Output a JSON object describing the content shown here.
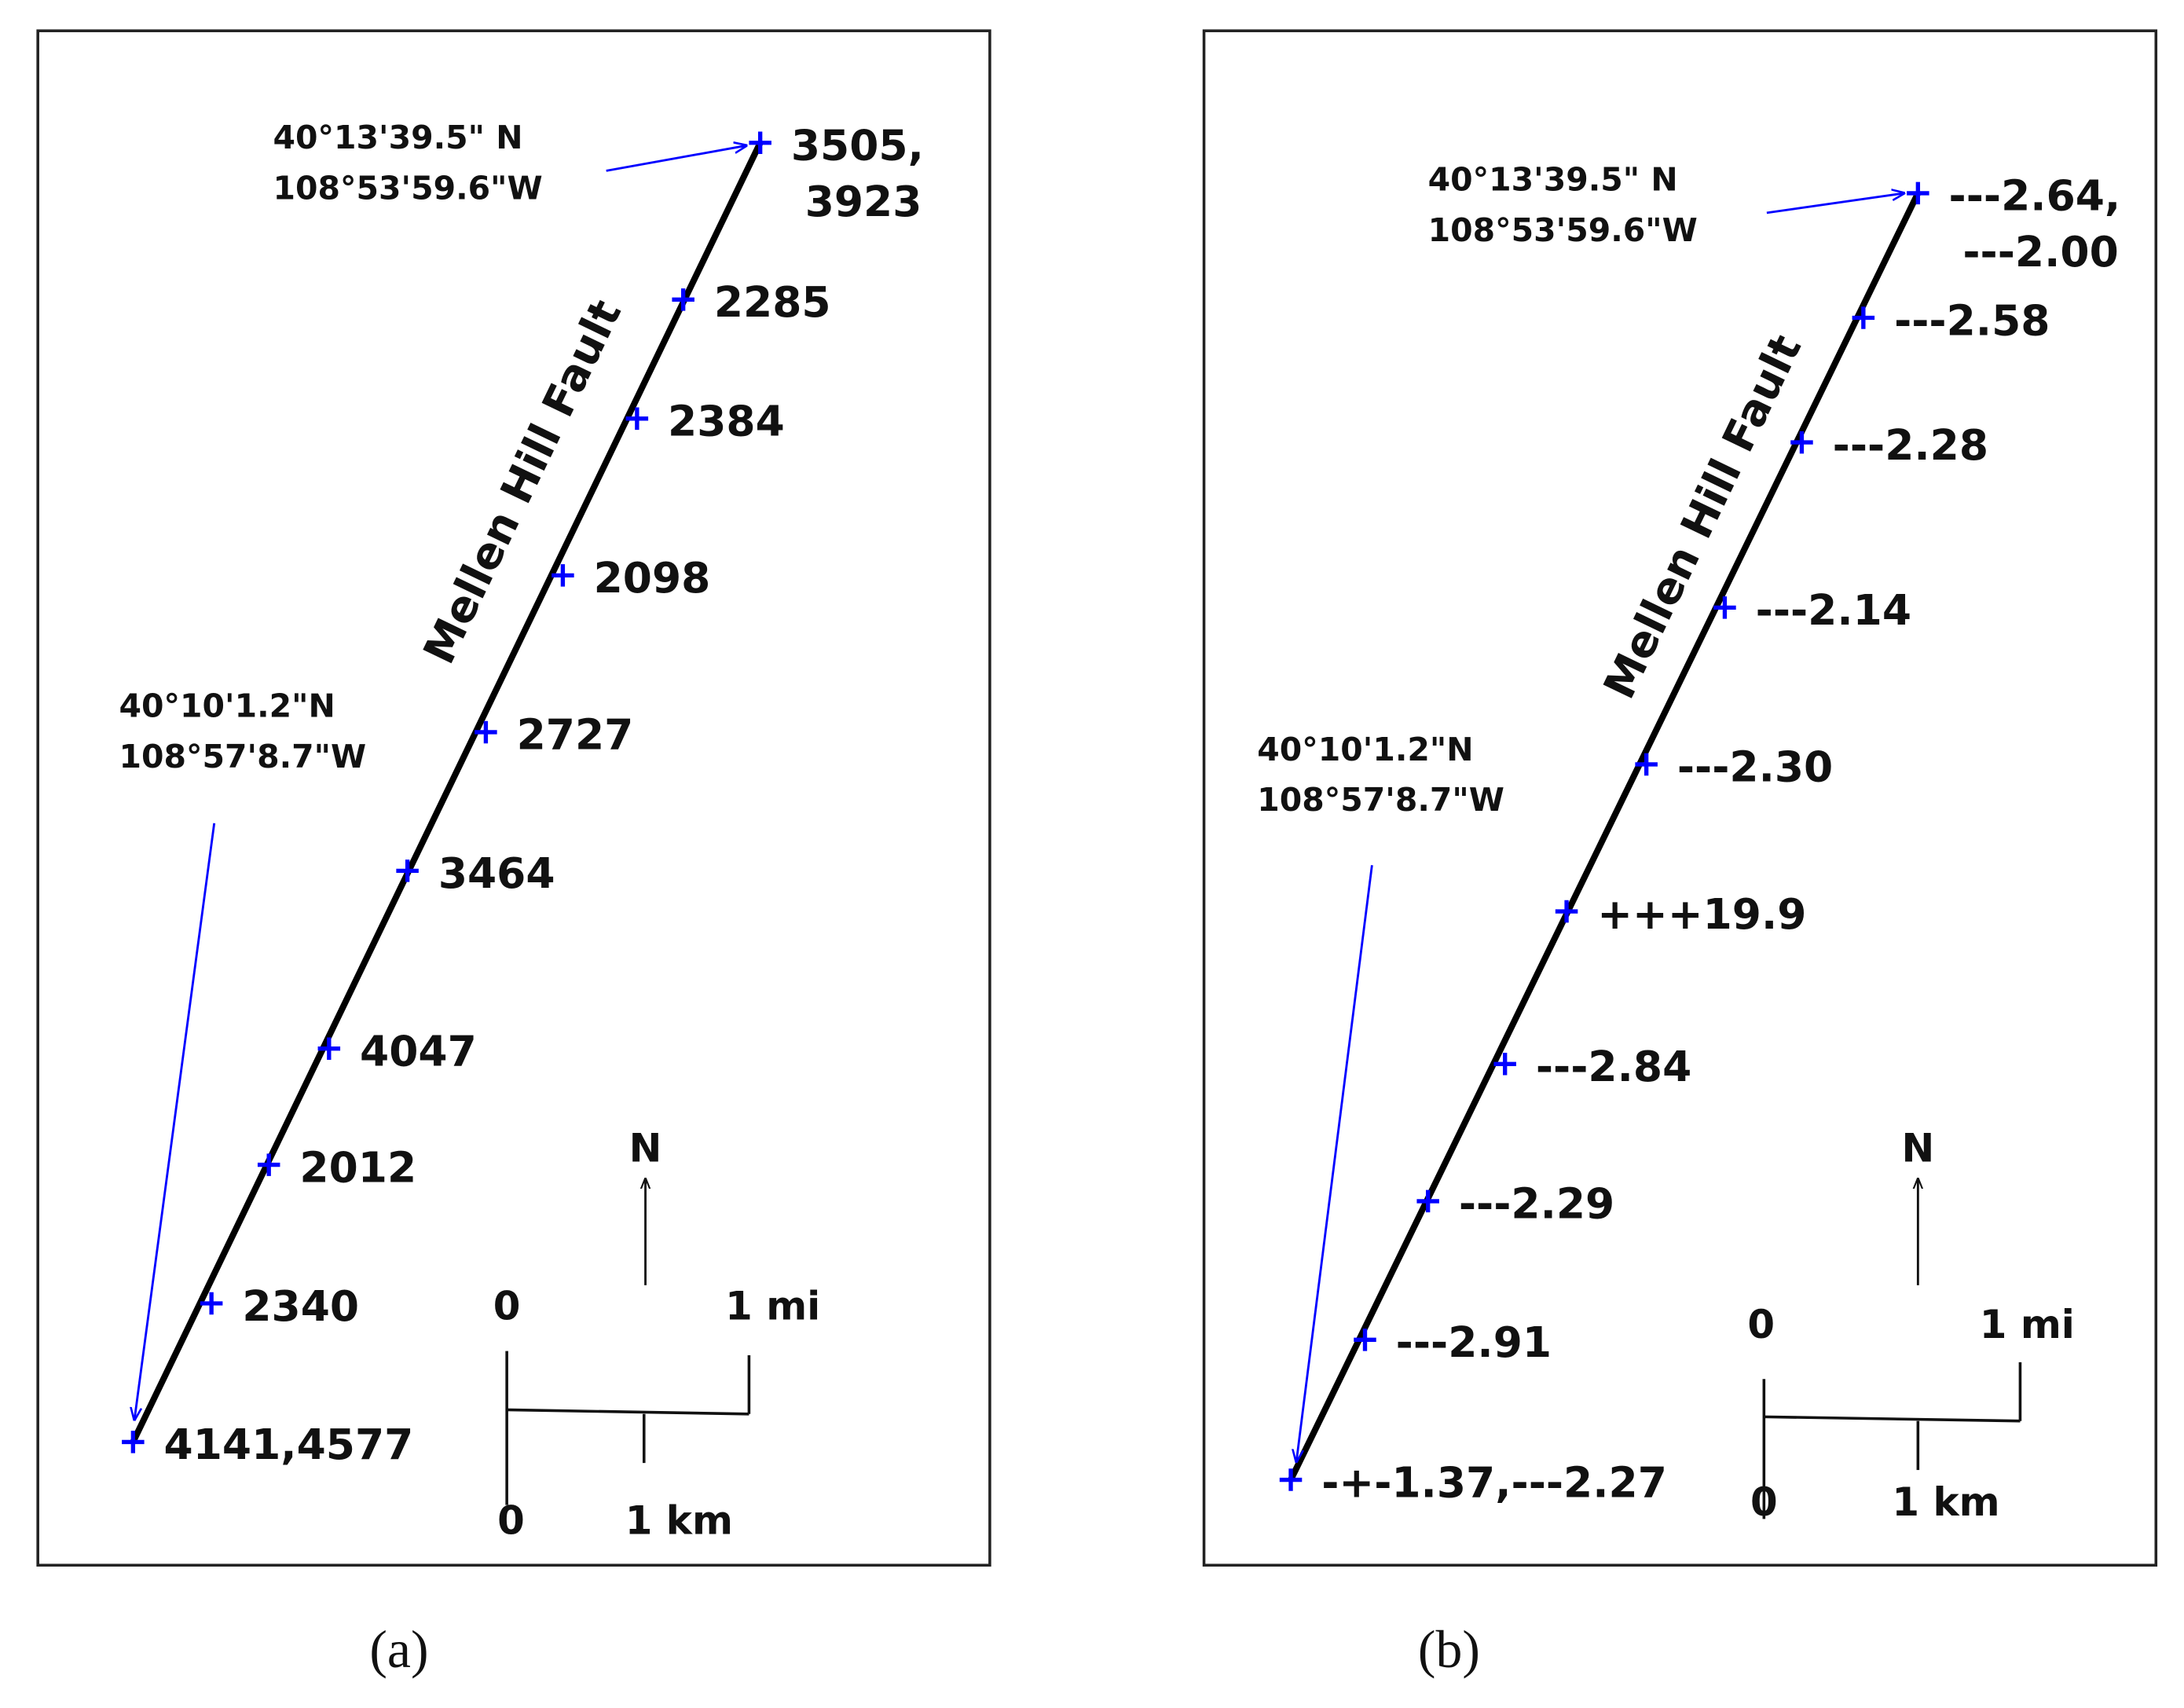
{
  "panels": [
    {
      "caption": "(a)",
      "fault_name": "Mellen Hill Fault",
      "north_coord": [
        "40°13'39.5\"  N",
        "108°53'59.6\"W"
      ],
      "south_coord": [
        "40°10'1.2\"N",
        "108°57'8.7\"W"
      ],
      "points": [
        {
          "label": [
            "3505,",
            "3923"
          ]
        },
        {
          "label": [
            "2285"
          ]
        },
        {
          "label": [
            "2384"
          ]
        },
        {
          "label": [
            "2098"
          ]
        },
        {
          "label": [
            "2727"
          ]
        },
        {
          "label": [
            "3464"
          ]
        },
        {
          "label": [
            "4047"
          ]
        },
        {
          "label": [
            "2012"
          ]
        },
        {
          "label": [
            "2340"
          ]
        },
        {
          "label": [
            "4141,4577"
          ]
        }
      ],
      "scale": {
        "north": "N",
        "mi_zero": "0",
        "mi": "1 mi",
        "km_zero": "0",
        "km": "1 km"
      }
    },
    {
      "caption": "(b)",
      "fault_name": "Mellen Hill Fault",
      "north_coord": [
        "40°13'39.5\"  N",
        "108°53'59.6\"W"
      ],
      "south_coord": [
        "40°10'1.2\"N",
        "108°57'8.7\"W"
      ],
      "points": [
        {
          "label": [
            "---2.64,",
            "---2.00"
          ]
        },
        {
          "label": [
            "---2.58"
          ]
        },
        {
          "label": [
            "---2.28"
          ]
        },
        {
          "label": [
            "---2.14"
          ]
        },
        {
          "label": [
            "---2.30"
          ]
        },
        {
          "label": [
            "+++19.9"
          ],
          "color": "#ff0000"
        },
        {
          "label": [
            "---2.84"
          ]
        },
        {
          "label": [
            "---2.29"
          ]
        },
        {
          "label": [
            "---2.91"
          ]
        },
        {
          "label": [
            "-+-1.37,---2.27"
          ]
        }
      ],
      "scale": {
        "north": "N",
        "mi_zero": "0",
        "mi": "1 mi",
        "km_zero": "0",
        "km": "1 km"
      }
    }
  ]
}
